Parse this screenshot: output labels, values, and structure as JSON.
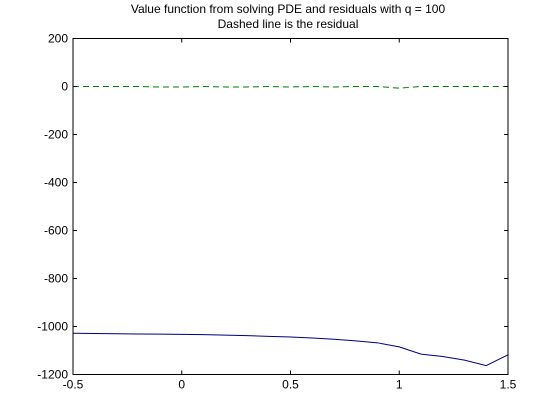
{
  "chart_data": {
    "type": "line",
    "title": "Value function from solving PDE and residuals with q = 100",
    "subtitle": "Dashed line is the residual",
    "xlabel": "",
    "ylabel": "",
    "xlim": [
      -0.5,
      1.5
    ],
    "ylim": [
      -1200,
      200
    ],
    "xticks": [
      -0.5,
      0,
      0.5,
      1,
      1.5
    ],
    "yticks": [
      200,
      0,
      -200,
      -400,
      -600,
      -800,
      -1000,
      -1200
    ],
    "xtick_labels": [
      "-0.5",
      "0",
      "0.5",
      "1",
      "1.5"
    ],
    "ytick_labels": [
      "200",
      "0",
      "-200",
      "-400",
      "-600",
      "-800",
      "-1000",
      "-1200"
    ],
    "grid": false,
    "legend": "none",
    "series": [
      {
        "style": "solid",
        "color": "#00007f",
        "x": [
          -0.5,
          -0.4,
          -0.3,
          -0.2,
          -0.1,
          0.0,
          0.1,
          0.2,
          0.3,
          0.4,
          0.5,
          0.6,
          0.7,
          0.8,
          0.9,
          1.0,
          1.1,
          1.2,
          1.3,
          1.4,
          1.5
        ],
        "values": [
          -1028,
          -1029,
          -1030,
          -1031,
          -1032,
          -1033,
          -1034,
          -1036,
          -1038,
          -1041,
          -1044,
          -1048,
          -1053,
          -1060,
          -1068,
          -1085,
          -1115,
          -1125,
          -1140,
          -1163,
          -1118
        ]
      },
      {
        "style": "dashed",
        "color": "#007f00",
        "x": [
          -0.5,
          -0.4,
          -0.3,
          -0.2,
          -0.1,
          0.0,
          0.1,
          0.2,
          0.3,
          0.4,
          0.5,
          0.6,
          0.7,
          0.8,
          0.9,
          1.0,
          1.1,
          1.2,
          1.3,
          1.4,
          1.5
        ],
        "values": [
          0,
          0,
          0,
          0,
          -2,
          -2,
          0,
          -2,
          -2,
          0,
          -2,
          0,
          -2,
          0,
          0,
          -7,
          0,
          0,
          0,
          0,
          0
        ]
      }
    ]
  }
}
